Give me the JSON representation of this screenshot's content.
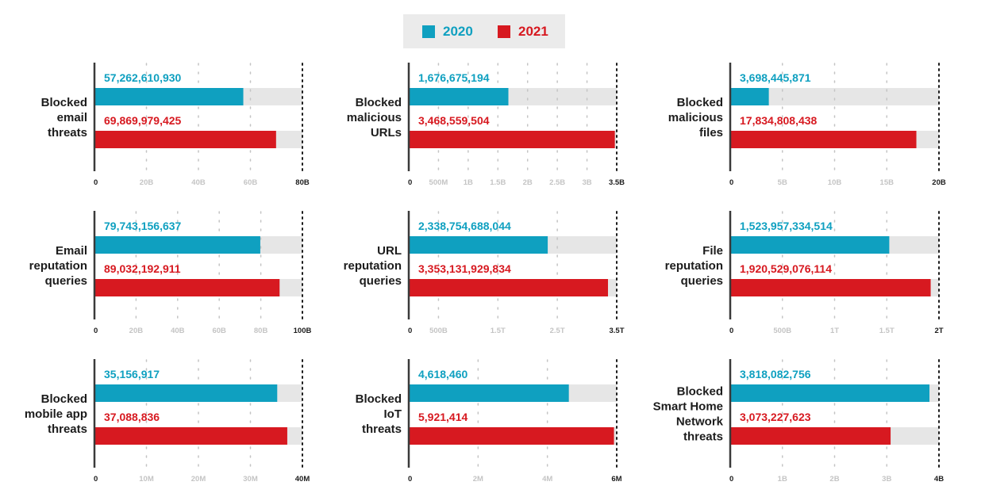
{
  "colors": {
    "c2020": "#0fa0c0",
    "c2021": "#d71920",
    "track": "#e6e6e6",
    "axis": "#3a3a3a",
    "tick_light": "#c4c4c4",
    "tick_dark": "#1c1c1c"
  },
  "legend": {
    "items": [
      {
        "label": "2020",
        "color": "#0fa0c0"
      },
      {
        "label": "2021",
        "color": "#d71920"
      }
    ],
    "placement": "top-center"
  },
  "chart_data": [
    {
      "type": "bar",
      "orientation": "horizontal",
      "label": [
        "Blocked",
        "email",
        "threats"
      ],
      "series": [
        {
          "name": "2020",
          "value": 57262610930,
          "label": "57,262,610,930"
        },
        {
          "name": "2021",
          "value": 69869979425,
          "label": "69,869,979,425"
        }
      ],
      "xlim": [
        0,
        80000000000
      ],
      "ticks": [
        {
          "v": 0,
          "t": "0"
        },
        {
          "v": 20000000000,
          "t": "20B"
        },
        {
          "v": 40000000000,
          "t": "40B"
        },
        {
          "v": 60000000000,
          "t": "60B"
        },
        {
          "v": 80000000000,
          "t": "80B"
        }
      ]
    },
    {
      "type": "bar",
      "orientation": "horizontal",
      "label": [
        "Blocked",
        "malicious",
        "URLs"
      ],
      "series": [
        {
          "name": "2020",
          "value": 1676675194,
          "label": "1,676,675,194"
        },
        {
          "name": "2021",
          "value": 3468559504,
          "label": "3,468,559,504"
        }
      ],
      "xlim": [
        0,
        3500000000
      ],
      "ticks": [
        {
          "v": 0,
          "t": "0"
        },
        {
          "v": 500000000,
          "t": "500M"
        },
        {
          "v": 1000000000,
          "t": "1B"
        },
        {
          "v": 1500000000,
          "t": "1.5B"
        },
        {
          "v": 2000000000,
          "t": "2B"
        },
        {
          "v": 2500000000,
          "t": "2.5B"
        },
        {
          "v": 3000000000,
          "t": "3B"
        },
        {
          "v": 3500000000,
          "t": "3.5B"
        }
      ]
    },
    {
      "type": "bar",
      "orientation": "horizontal",
      "label": [
        "Blocked",
        "malicious",
        "files"
      ],
      "series": [
        {
          "name": "2020",
          "value": 3698445871,
          "label": "3,698,445,871"
        },
        {
          "name": "2021",
          "value": 17834808438,
          "label": "17,834,808,438"
        }
      ],
      "xlim": [
        0,
        20000000000
      ],
      "ticks": [
        {
          "v": 0,
          "t": "0"
        },
        {
          "v": 5000000000,
          "t": "5B"
        },
        {
          "v": 10000000000,
          "t": "10B"
        },
        {
          "v": 15000000000,
          "t": "15B"
        },
        {
          "v": 20000000000,
          "t": "20B"
        }
      ]
    },
    {
      "type": "bar",
      "orientation": "horizontal",
      "label": [
        "Email",
        "reputation",
        "queries"
      ],
      "series": [
        {
          "name": "2020",
          "value": 79743156637,
          "label": "79,743,156,637"
        },
        {
          "name": "2021",
          "value": 89032192911,
          "label": "89,032,192,911"
        }
      ],
      "xlim": [
        0,
        100000000000
      ],
      "ticks": [
        {
          "v": 0,
          "t": "0"
        },
        {
          "v": 20000000000,
          "t": "20B"
        },
        {
          "v": 40000000000,
          "t": "40B"
        },
        {
          "v": 60000000000,
          "t": "60B"
        },
        {
          "v": 80000000000,
          "t": "80B"
        },
        {
          "v": 100000000000,
          "t": "100B"
        }
      ]
    },
    {
      "type": "bar",
      "orientation": "horizontal",
      "label": [
        "URL",
        "reputation",
        "queries"
      ],
      "series": [
        {
          "name": "2020",
          "value": 2338754688044,
          "label": "2,338,754,688,044"
        },
        {
          "name": "2021",
          "value": 3353131929834,
          "label": "3,353,131,929,834"
        }
      ],
      "xlim": [
        0,
        3500000000000
      ],
      "ticks": [
        {
          "v": 0,
          "t": "0"
        },
        {
          "v": 500000000000,
          "t": "500B"
        },
        {
          "v": 1500000000000,
          "t": "1.5T"
        },
        {
          "v": 2500000000000,
          "t": "2.5T"
        },
        {
          "v": 3500000000000,
          "t": "3.5T"
        }
      ]
    },
    {
      "type": "bar",
      "orientation": "horizontal",
      "label": [
        "File",
        "reputation",
        "queries"
      ],
      "series": [
        {
          "name": "2020",
          "value": 1523957334514,
          "label": "1,523,957,334,514"
        },
        {
          "name": "2021",
          "value": 1920529076114,
          "label": "1,920,529,076,114"
        }
      ],
      "xlim": [
        0,
        2000000000000
      ],
      "ticks": [
        {
          "v": 0,
          "t": "0"
        },
        {
          "v": 500000000000,
          "t": "500B"
        },
        {
          "v": 1000000000000,
          "t": "1T"
        },
        {
          "v": 1500000000000,
          "t": "1.5T"
        },
        {
          "v": 2000000000000,
          "t": "2T"
        }
      ]
    },
    {
      "type": "bar",
      "orientation": "horizontal",
      "label": [
        "Blocked",
        "mobile app",
        "threats"
      ],
      "series": [
        {
          "name": "2020",
          "value": 35156917,
          "label": "35,156,917"
        },
        {
          "name": "2021",
          "value": 37088836,
          "label": "37,088,836"
        }
      ],
      "xlim": [
        0,
        40000000
      ],
      "ticks": [
        {
          "v": 0,
          "t": "0"
        },
        {
          "v": 10000000,
          "t": "10M"
        },
        {
          "v": 20000000,
          "t": "20M"
        },
        {
          "v": 30000000,
          "t": "30M"
        },
        {
          "v": 40000000,
          "t": "40M"
        }
      ]
    },
    {
      "type": "bar",
      "orientation": "horizontal",
      "label": [
        "Blocked",
        "IoT",
        "threats"
      ],
      "series": [
        {
          "name": "2020",
          "value": 4618460,
          "label": "4,618,460"
        },
        {
          "name": "2021",
          "value": 5921414,
          "label": "5,921,414"
        }
      ],
      "xlim": [
        0,
        6000000
      ],
      "ticks": [
        {
          "v": 0,
          "t": "0"
        },
        {
          "v": 2000000,
          "t": "2M"
        },
        {
          "v": 4000000,
          "t": "4M"
        },
        {
          "v": 6000000,
          "t": "6M"
        }
      ]
    },
    {
      "type": "bar",
      "orientation": "horizontal",
      "label": [
        "Blocked",
        "Smart Home",
        "Network",
        "threats"
      ],
      "series": [
        {
          "name": "2020",
          "value": 3818082756,
          "label": "3,818,082,756"
        },
        {
          "name": "2021",
          "value": 3073227623,
          "label": "3,073,227,623"
        }
      ],
      "xlim": [
        0,
        4000000000
      ],
      "ticks": [
        {
          "v": 0,
          "t": "0"
        },
        {
          "v": 1000000000,
          "t": "1B"
        },
        {
          "v": 2000000000,
          "t": "2B"
        },
        {
          "v": 3000000000,
          "t": "3B"
        },
        {
          "v": 4000000000,
          "t": "4B"
        }
      ]
    }
  ]
}
